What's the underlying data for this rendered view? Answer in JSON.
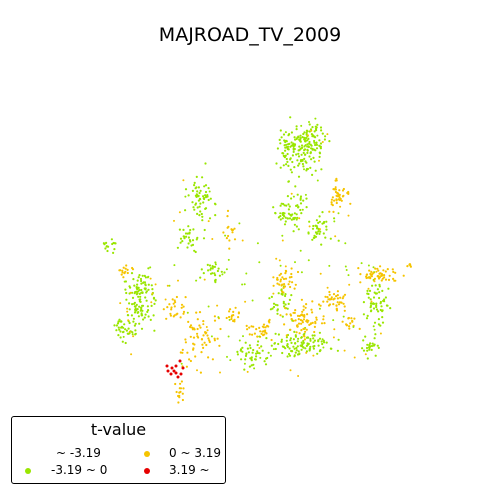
{
  "map": {
    "title": "MAJROAD_TV_2009"
  },
  "legend": {
    "title": "t-value",
    "classes": [
      {
        "label": "~ -3.19",
        "color": "#ffffff"
      },
      {
        "label": "-3.19 ~ 0",
        "color": "#99e600"
      },
      {
        "label": "0 ~ 3.19",
        "color": "#f5c400"
      },
      {
        "label": "3.19 ~",
        "color": "#e60000"
      }
    ]
  },
  "colors": {
    "negative": "#99e600",
    "positive": "#f5c400",
    "significant_positive": "#e60000"
  }
}
